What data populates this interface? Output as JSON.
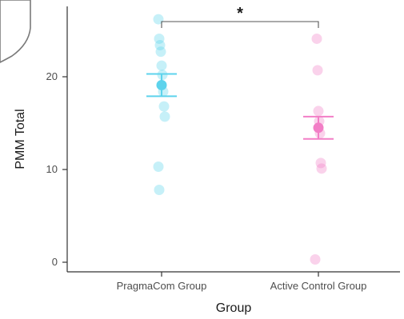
{
  "chart_data": {
    "type": "scatter",
    "title": "",
    "xlabel": "Group",
    "ylabel": "PMM Total",
    "categories": [
      "PragmaCom Group",
      "Active Control Group"
    ],
    "ylim": [
      -1,
      27.5
    ],
    "yticks": [
      0,
      10,
      20
    ],
    "ytick_labels": [
      "0",
      "10",
      "20"
    ],
    "grid": false,
    "legend": "none",
    "series": [
      {
        "category": "PragmaCom Group",
        "color": "#5dd3ec",
        "points": [
          26.2,
          24.1,
          23.4,
          22.7,
          21.2,
          20.2,
          18.4,
          16.8,
          15.7,
          10.3,
          7.8
        ],
        "mean": 19.1,
        "se_low": 17.9,
        "se_high": 20.3
      },
      {
        "category": "Active Control Group",
        "color": "#f27ec6",
        "points": [
          24.1,
          20.7,
          16.3,
          15.2,
          13.9,
          10.7,
          10.1,
          0.3
        ],
        "mean": 14.5,
        "se_low": 13.3,
        "se_high": 15.7
      }
    ],
    "annotations": [
      {
        "type": "significance_bracket",
        "between": [
          "PragmaCom Group",
          "Active Control Group"
        ],
        "y": 26.2,
        "label": "*"
      }
    ]
  }
}
